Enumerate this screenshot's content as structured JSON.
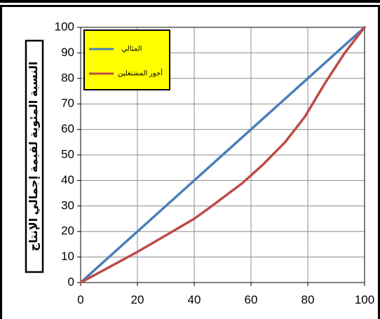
{
  "chart_data": {
    "type": "line",
    "title": "",
    "xlabel": "",
    "ylabel": "النسبة المئوية لقيمة إجمالي الإنتاج",
    "xlim": [
      0,
      100
    ],
    "ylim": [
      0,
      100
    ],
    "x_ticks": [
      0,
      20,
      40,
      60,
      80,
      100
    ],
    "y_ticks": [
      0,
      10,
      20,
      30,
      40,
      50,
      60,
      70,
      80,
      90,
      100
    ],
    "grid": true,
    "legend_position": "top-left",
    "series": [
      {
        "name": "المثالي",
        "color": "#4a7ebb",
        "x": [
          0,
          100
        ],
        "y": [
          0,
          100
        ]
      },
      {
        "name": "أجور المشتغلين",
        "color": "#be4b48",
        "x": [
          0,
          10,
          20,
          30,
          40,
          45,
          57,
          64,
          72,
          79,
          86,
          93,
          100
        ],
        "y": [
          0,
          6,
          12,
          18.5,
          25,
          29,
          39,
          46,
          55,
          65,
          78,
          90,
          100
        ]
      }
    ]
  }
}
